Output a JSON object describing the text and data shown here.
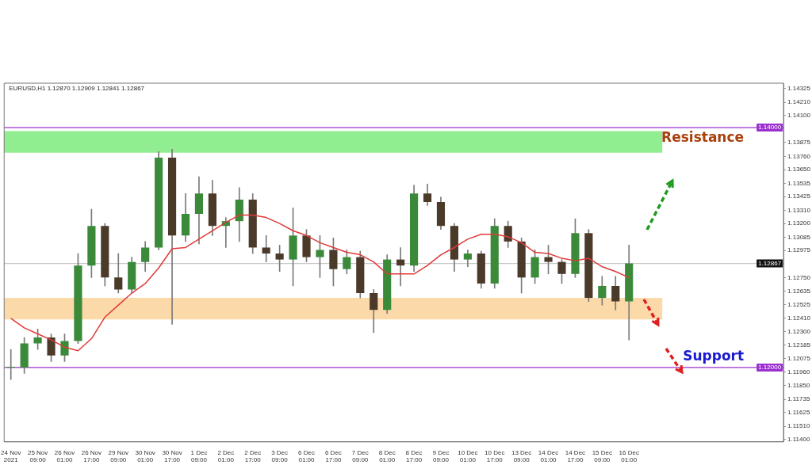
{
  "chart_data": {
    "type": "candlestick",
    "title": "EURUSD,H1 1.12870 1.12909 1.12841 1.12867",
    "categories": [
      "24 Nov 2021",
      null,
      "25 Nov 09:00",
      null,
      "26 Nov 01:00",
      null,
      "26 Nov 17:00",
      null,
      "29 Nov 09:00",
      null,
      "30 Nov 01:00",
      null,
      "30 Nov 17:00",
      null,
      "1 Dec 09:00",
      null,
      "2 Dec 01:00",
      null,
      "2 Dec 17:00",
      null,
      "3 Dec 09:00",
      null,
      "6 Dec 01:00",
      null,
      "6 Dec 17:00",
      null,
      "7 Dec 09:00",
      null,
      "8 Dec 01:00",
      null,
      "8 Dec 17:00",
      null,
      "9 Dec 09:00",
      null,
      "10 Dec 01:00",
      null,
      "10 Dec 17:00",
      null,
      "13 Dec 09:00",
      null,
      "14 Dec 01:00",
      null,
      "14 Dec 17:00",
      null,
      "15 Dec 09:00",
      null,
      "16 Dec 01:00",
      null,
      null,
      null,
      null,
      null,
      null,
      null,
      null,
      null,
      null,
      null
    ],
    "ohlc": [
      [
        1.12,
        1.1215,
        1.119,
        1.12
      ],
      [
        1.12,
        1.1225,
        1.1195,
        1.122
      ],
      [
        1.122,
        1.1232,
        1.1215,
        1.1225
      ],
      [
        1.1225,
        1.1228,
        1.1205,
        1.121
      ],
      [
        1.121,
        1.1228,
        1.1205,
        1.1222
      ],
      [
        1.1222,
        1.1295,
        1.122,
        1.1285
      ],
      [
        1.1285,
        1.1332,
        1.1275,
        1.1318
      ],
      [
        1.1318,
        1.132,
        1.1268,
        1.1275
      ],
      [
        1.1275,
        1.1295,
        1.1262,
        1.1265
      ],
      [
        1.1265,
        1.1292,
        1.1262,
        1.1288
      ],
      [
        1.1288,
        1.1305,
        1.128,
        1.13
      ],
      [
        1.13,
        1.138,
        1.1298,
        1.1375
      ],
      [
        1.1375,
        1.1382,
        1.1236,
        1.131
      ],
      [
        1.131,
        1.1345,
        1.1305,
        1.1328
      ],
      [
        1.1328,
        1.1359,
        1.1303,
        1.1345
      ],
      [
        1.1345,
        1.1356,
        1.131,
        1.1318
      ],
      [
        1.1318,
        1.1325,
        1.13,
        1.1322
      ],
      [
        1.1322,
        1.135,
        1.1305,
        1.134
      ],
      [
        1.134,
        1.1345,
        1.1295,
        1.13
      ],
      [
        1.13,
        1.131,
        1.1288,
        1.1295
      ],
      [
        1.1295,
        1.1302,
        1.128,
        1.129
      ],
      [
        1.129,
        1.1333,
        1.1268,
        1.131
      ],
      [
        1.131,
        1.1315,
        1.1288,
        1.1292
      ],
      [
        1.1292,
        1.131,
        1.1275,
        1.1298
      ],
      [
        1.1298,
        1.1308,
        1.1268,
        1.1282
      ],
      [
        1.1282,
        1.1298,
        1.1278,
        1.1292
      ],
      [
        1.1292,
        1.1297,
        1.1258,
        1.1262
      ],
      [
        1.1262,
        1.1265,
        1.1229,
        1.1248
      ],
      [
        1.1248,
        1.1294,
        1.1245,
        1.129
      ],
      [
        1.129,
        1.13,
        1.1268,
        1.1285
      ],
      [
        1.1285,
        1.1352,
        1.128,
        1.1345
      ],
      [
        1.1345,
        1.1353,
        1.1335,
        1.1338
      ],
      [
        1.1338,
        1.1342,
        1.1315,
        1.1318
      ],
      [
        1.1318,
        1.132,
        1.128,
        1.129
      ],
      [
        1.129,
        1.1298,
        1.1284,
        1.1295
      ],
      [
        1.1295,
        1.1297,
        1.1266,
        1.127
      ],
      [
        1.127,
        1.1324,
        1.1266,
        1.1318
      ],
      [
        1.1318,
        1.1322,
        1.13,
        1.1305
      ],
      [
        1.1305,
        1.1308,
        1.1262,
        1.1275
      ],
      [
        1.1275,
        1.1298,
        1.127,
        1.1292
      ],
      [
        1.1292,
        1.1302,
        1.1278,
        1.1288
      ],
      [
        1.1288,
        1.129,
        1.127,
        1.1278
      ],
      [
        1.1278,
        1.1324,
        1.1275,
        1.1312
      ],
      [
        1.1312,
        1.1315,
        1.1255,
        1.1258
      ],
      [
        1.1258,
        1.1276,
        1.1252,
        1.1268
      ],
      [
        1.1268,
        1.1276,
        1.1248,
        1.1255
      ],
      [
        1.1255,
        1.1302,
        1.1223,
        1.12867
      ],
      null,
      null,
      null,
      null,
      null,
      null,
      null,
      null,
      null,
      null,
      null
    ],
    "colors": [
      "#3a8a3a",
      "#3a8a3a",
      "#3a8a3a",
      "#4b3a2a",
      "#3a8a3a",
      "#3a8a3a",
      "#3a8a3a",
      "#4b3a2a",
      "#4b3a2a",
      "#3a8a3a",
      "#3a8a3a",
      "#3a8a3a",
      "#4b3a2a",
      "#3a8a3a",
      "#3a8a3a",
      "#4b3a2a",
      "#3a8a3a",
      "#3a8a3a",
      "#4b3a2a",
      "#4b3a2a",
      "#4b3a2a",
      "#3a8a3a",
      "#4b3a2a",
      "#3a8a3a",
      "#4b3a2a",
      "#3a8a3a",
      "#4b3a2a",
      "#4b3a2a",
      "#3a8a3a",
      "#4b3a2a",
      "#3a8a3a",
      "#4b3a2a",
      "#4b3a2a",
      "#4b3a2a",
      "#3a8a3a",
      "#4b3a2a",
      "#3a8a3a",
      "#4b3a2a",
      "#4b3a2a",
      "#3a8a3a",
      "#4b3a2a",
      "#4b3a2a",
      "#3a8a3a",
      "#4b3a2a",
      "#3a8a3a",
      "#4b3a2a",
      "#3a8a3a",
      null,
      null,
      null,
      null,
      null,
      null,
      null,
      null,
      null,
      null,
      null
    ],
    "series": [
      {
        "type": "line",
        "color": "#e03a3a",
        "values": [
          1.1241,
          1.1233,
          1.1228,
          1.1223,
          1.1217,
          1.1214,
          1.1224,
          1.1242,
          1.1252,
          1.1262,
          1.127,
          1.1283,
          1.1299,
          1.13,
          1.1307,
          1.1314,
          1.1321,
          1.1327,
          1.1327,
          1.1325,
          1.132,
          1.1314,
          1.131,
          1.1304,
          1.13,
          1.1296,
          1.1294,
          1.1288,
          1.1278,
          1.1278,
          1.1278,
          1.1285,
          1.1294,
          1.13,
          1.1307,
          1.1311,
          1.1311,
          1.1309,
          1.1304,
          1.1296,
          1.1295,
          1.1291,
          1.1289,
          1.1291,
          1.1284,
          1.128,
          1.1275,
          null,
          null,
          null,
          null,
          null,
          null,
          null,
          null,
          null,
          null,
          null
        ]
      }
    ],
    "ylim": [
      1.1138,
      1.1437
    ],
    "yticks": [
      1.14325,
      {
        "value": 1.1421,
        "label": "1.14210"
      },
      {
        "value": 1.141,
        "label": "1.14100"
      },
      1.13875,
      {
        "value": 1.1376,
        "label": "1.13760"
      },
      {
        "value": 1.1365,
        "label": "1.13650"
      },
      1.13535,
      1.13425,
      {
        "value": 1.1331,
        "label": "1.13310"
      },
      {
        "value": 1.132,
        "label": "1.13200"
      },
      1.13085,
      1.12975,
      {
        "value": 1.1275,
        "label": "1.12750"
      },
      1.12635,
      1.12525,
      {
        "value": 1.1241,
        "label": "1.12410"
      },
      {
        "value": 1.123,
        "label": "1.12300"
      },
      1.12185,
      1.12075,
      {
        "value": 1.1196,
        "label": "1.11960"
      },
      {
        "value": 1.1185,
        "label": "1.11850"
      },
      1.11735,
      1.11625,
      {
        "value": 1.1151,
        "label": "1.11510"
      },
      {
        "value": 1.114,
        "label": "1.11400"
      }
    ],
    "ref_lines": [
      {
        "axis": "y",
        "value": 1.14,
        "label": "1.14000",
        "color": "#9b30d0"
      },
      {
        "axis": "y",
        "value": 1.12,
        "label": "1.12000",
        "color": "#9b30d0"
      },
      {
        "axis": "y",
        "value": 1.12867,
        "label": "1.12867",
        "color": "#c8c8c8"
      }
    ],
    "bands": [
      {
        "axis": "y",
        "from": 1.1379,
        "to": 1.1397,
        "color": "#90ee90"
      },
      {
        "axis": "y",
        "from": 1.124,
        "to": 1.1258,
        "color": "#fcd9a8"
      }
    ],
    "annotations": [
      "Resistance",
      "Support"
    ],
    "legend": false
  }
}
